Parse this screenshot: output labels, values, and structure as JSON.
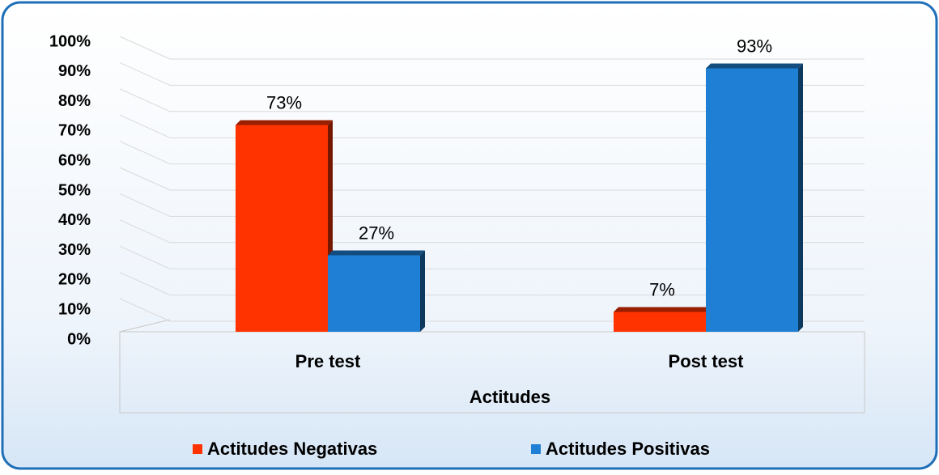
{
  "chart_data": {
    "type": "bar",
    "categories": [
      "Pre test",
      "Post test"
    ],
    "x_label": "Actitudes",
    "series": [
      {
        "name": "Actitudes Negativas",
        "color": "#ff3300",
        "values": [
          73,
          7
        ],
        "value_labels": [
          "73%",
          "7%"
        ]
      },
      {
        "name": "Actitudes Positivas",
        "color": "#1f7fd4",
        "values": [
          27,
          93
        ],
        "value_labels": [
          "27%",
          "93%"
        ]
      }
    ],
    "ylim": [
      0,
      100
    ],
    "yticks": [
      {
        "value": 0,
        "label": "0%"
      },
      {
        "value": 10,
        "label": "10%"
      },
      {
        "value": 20,
        "label": "20%"
      },
      {
        "value": 30,
        "label": "30%"
      },
      {
        "value": 40,
        "label": "40%"
      },
      {
        "value": 50,
        "label": "50%"
      },
      {
        "value": 60,
        "label": "60%"
      },
      {
        "value": 70,
        "label": "70%"
      },
      {
        "value": 80,
        "label": "80%"
      },
      {
        "value": 90,
        "label": "90%"
      },
      {
        "value": 100,
        "label": "100%"
      }
    ],
    "grid": true,
    "legend": "bottom"
  }
}
